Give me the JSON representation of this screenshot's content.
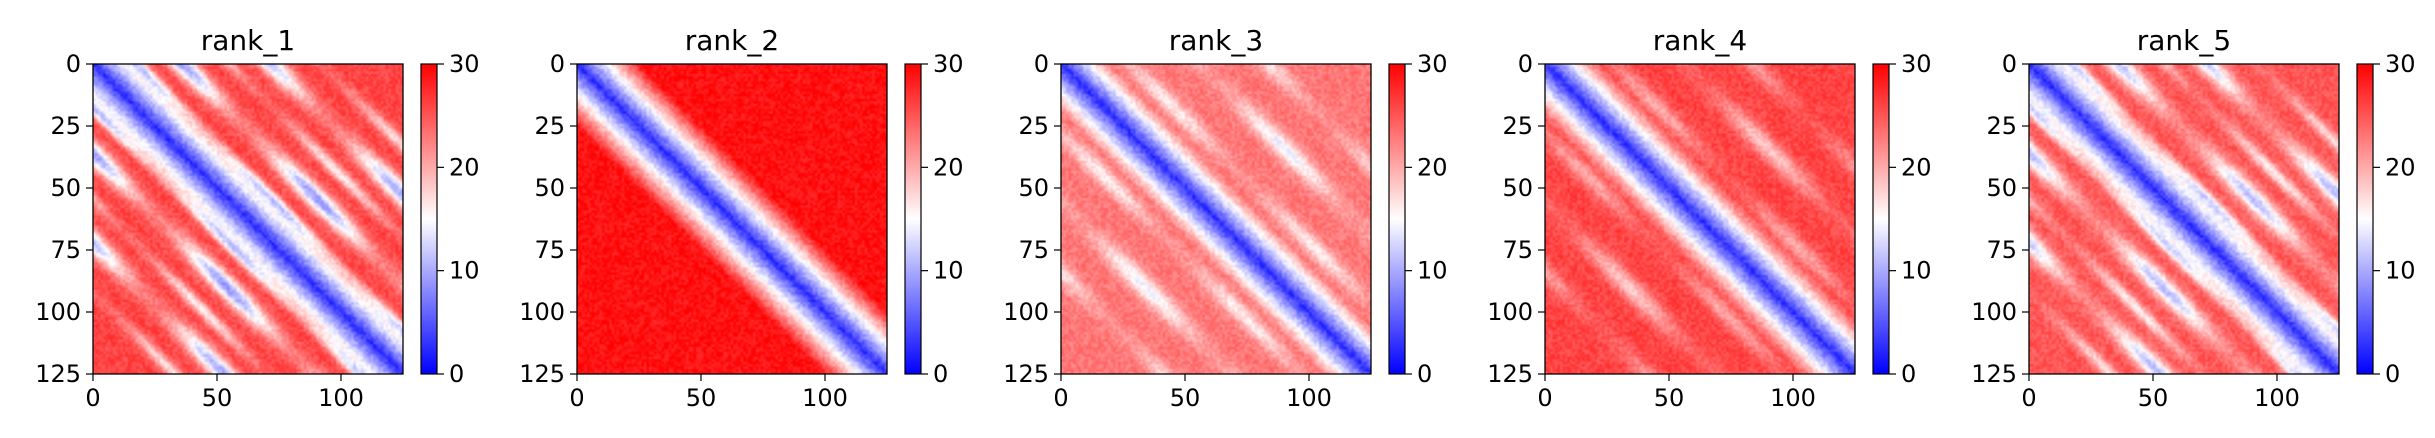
{
  "chart_data": [
    {
      "type": "heatmap",
      "title": "rank_1",
      "xlim": [
        0,
        125
      ],
      "ylim": [
        125,
        0
      ],
      "xticks": [
        0,
        50,
        100
      ],
      "yticks": [
        0,
        25,
        50,
        75,
        100,
        125
      ],
      "colorbar": {
        "ticks": [
          0,
          10,
          20,
          30
        ],
        "vmin": 0,
        "vmax": 30,
        "colors": [
          "#0000ff",
          "#ffffff",
          "#ff0000"
        ]
      },
      "matrix_size": 125,
      "pattern": {
        "offdiag_base": 26,
        "bands": [
          {
            "offset": 18,
            "depth": 10,
            "width": 2.5
          },
          {
            "offset": 36,
            "depth": 17,
            "width": 4.0
          },
          {
            "offset": 55,
            "depth": 10,
            "width": 2.5
          },
          {
            "offset": 72,
            "depth": 16,
            "width": 4.0
          },
          {
            "offset": 92,
            "depth": 9,
            "width": 2.5
          }
        ]
      }
    },
    {
      "type": "heatmap",
      "title": "rank_2",
      "xlim": [
        0,
        125
      ],
      "ylim": [
        125,
        0
      ],
      "xticks": [
        0,
        50,
        100
      ],
      "yticks": [
        0,
        25,
        50,
        75,
        100,
        125
      ],
      "colorbar": {
        "ticks": [
          0,
          10,
          20,
          30
        ],
        "vmin": 0,
        "vmax": 30,
        "colors": [
          "#0000ff",
          "#ffffff",
          "#ff0000"
        ]
      },
      "matrix_size": 125,
      "pattern": {
        "offdiag_base": 29,
        "bands": []
      }
    },
    {
      "type": "heatmap",
      "title": "rank_3",
      "xlim": [
        0,
        125
      ],
      "ylim": [
        125,
        0
      ],
      "xticks": [
        0,
        50,
        100
      ],
      "yticks": [
        0,
        25,
        50,
        75,
        100,
        125
      ],
      "colorbar": {
        "ticks": [
          0,
          10,
          20,
          30
        ],
        "vmin": 0,
        "vmax": 30,
        "colors": [
          "#0000ff",
          "#ffffff",
          "#ff0000"
        ]
      },
      "matrix_size": 125,
      "pattern": {
        "offdiag_base": 23,
        "bands": [
          {
            "offset": 28,
            "depth": 7,
            "width": 3.5
          },
          {
            "offset": 56,
            "depth": 9,
            "width": 4.0
          },
          {
            "offset": 84,
            "depth": 7,
            "width": 3.5
          }
        ]
      }
    },
    {
      "type": "heatmap",
      "title": "rank_4",
      "xlim": [
        0,
        125
      ],
      "ylim": [
        125,
        0
      ],
      "xticks": [
        0,
        50,
        100
      ],
      "yticks": [
        0,
        25,
        50,
        75,
        100,
        125
      ],
      "colorbar": {
        "ticks": [
          0,
          10,
          20,
          30
        ],
        "vmin": 0,
        "vmax": 30,
        "colors": [
          "#0000ff",
          "#ffffff",
          "#ff0000"
        ]
      },
      "matrix_size": 125,
      "pattern": {
        "offdiag_base": 26,
        "bands": [
          {
            "offset": 28,
            "depth": 6,
            "width": 3.5
          },
          {
            "offset": 56,
            "depth": 8,
            "width": 4.0
          },
          {
            "offset": 84,
            "depth": 6,
            "width": 3.5
          }
        ]
      }
    },
    {
      "type": "heatmap",
      "title": "rank_5",
      "xlim": [
        0,
        125
      ],
      "ylim": [
        125,
        0
      ],
      "xticks": [
        0,
        50,
        100
      ],
      "yticks": [
        0,
        25,
        50,
        75,
        100,
        125
      ],
      "colorbar": {
        "ticks": [
          0,
          10,
          20,
          30
        ],
        "vmin": 0,
        "vmax": 30,
        "colors": [
          "#0000ff",
          "#ffffff",
          "#ff0000"
        ]
      },
      "matrix_size": 125,
      "pattern": {
        "offdiag_base": 25,
        "bands": [
          {
            "offset": 18,
            "depth": 9,
            "width": 2.5
          },
          {
            "offset": 36,
            "depth": 14,
            "width": 4.0
          },
          {
            "offset": 55,
            "depth": 9,
            "width": 2.5
          },
          {
            "offset": 72,
            "depth": 14,
            "width": 4.0
          },
          {
            "offset": 92,
            "depth": 8,
            "width": 2.5
          }
        ]
      }
    }
  ]
}
